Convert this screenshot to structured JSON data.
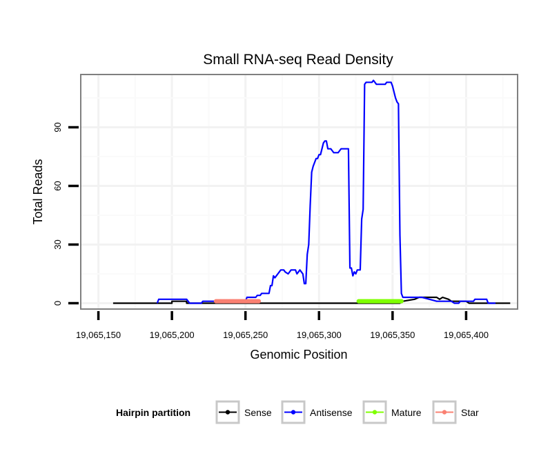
{
  "chart_data": {
    "type": "line",
    "title": "Small RNA-seq Read Density",
    "xlabel": "Genomic Position",
    "ylabel": "Total Reads",
    "xlim": [
      19065138,
      19065435
    ],
    "ylim": [
      -3,
      117
    ],
    "x_ticks": [
      19065150,
      19065200,
      19065250,
      19065300,
      19065350,
      19065400
    ],
    "x_tick_labels": [
      "19,065,150",
      "19,065,200",
      "19,065,250",
      "19,065,300",
      "19,065,350",
      "19,065,400"
    ],
    "y_ticks": [
      0,
      30,
      60,
      90
    ],
    "y_tick_labels": [
      "0",
      "30",
      "60",
      "90"
    ],
    "grid": true,
    "legend": {
      "title": "Hairpin partition",
      "position": "bottom",
      "entries": [
        {
          "name": "Sense",
          "color": "#000000"
        },
        {
          "name": "Antisense",
          "color": "#0000ff"
        },
        {
          "name": "Mature",
          "color": "#7fff00"
        },
        {
          "name": "Star",
          "color": "#fa8072"
        }
      ]
    },
    "series": [
      {
        "name": "Sense",
        "color": "#000000",
        "style": "line",
        "points": [
          [
            19065160,
            0
          ],
          [
            19065200,
            0
          ],
          [
            19065200,
            1
          ],
          [
            19065210,
            1
          ],
          [
            19065210,
            0
          ],
          [
            19065329,
            0
          ],
          [
            19065355,
            0
          ],
          [
            19065357,
            1
          ],
          [
            19065365,
            2
          ],
          [
            19065368,
            3
          ],
          [
            19065380,
            3
          ],
          [
            19065382,
            2
          ],
          [
            19065384,
            3
          ],
          [
            19065388,
            2
          ],
          [
            19065390,
            1
          ],
          [
            19065400,
            1
          ],
          [
            19065402,
            0
          ],
          [
            19065430,
            0
          ]
        ]
      },
      {
        "name": "Antisense",
        "color": "#0000ff",
        "style": "line",
        "points": [
          [
            19065190,
            0
          ],
          [
            19065191,
            2
          ],
          [
            19065210,
            2
          ],
          [
            19065212,
            0
          ],
          [
            19065220,
            0
          ],
          [
            19065221,
            1
          ],
          [
            19065250,
            1
          ],
          [
            19065251,
            3
          ],
          [
            19065257,
            3
          ],
          [
            19065258,
            4
          ],
          [
            19065260,
            4
          ],
          [
            19065261,
            5
          ],
          [
            19065266,
            5
          ],
          [
            19065267,
            9
          ],
          [
            19065268,
            9
          ],
          [
            19065269,
            14
          ],
          [
            19065270,
            13
          ],
          [
            19065271,
            14
          ],
          [
            19065272,
            15
          ],
          [
            19065273,
            16
          ],
          [
            19065274,
            17
          ],
          [
            19065276,
            17
          ],
          [
            19065277,
            16
          ],
          [
            19065279,
            15
          ],
          [
            19065281,
            17
          ],
          [
            19065284,
            17
          ],
          [
            19065285,
            15
          ],
          [
            19065286,
            16
          ],
          [
            19065287,
            17
          ],
          [
            19065288,
            16
          ],
          [
            19065289,
            15
          ],
          [
            19065290,
            10
          ],
          [
            19065291,
            10
          ],
          [
            19065292,
            25
          ],
          [
            19065293,
            30
          ],
          [
            19065294,
            50
          ],
          [
            19065295,
            67
          ],
          [
            19065296,
            70
          ],
          [
            19065297,
            72
          ],
          [
            19065298,
            74
          ],
          [
            19065299,
            74
          ],
          [
            19065300,
            76
          ],
          [
            19065301,
            76
          ],
          [
            19065302,
            79
          ],
          [
            19065303,
            82
          ],
          [
            19065304,
            83
          ],
          [
            19065305,
            83
          ],
          [
            19065306,
            79
          ],
          [
            19065308,
            79
          ],
          [
            19065309,
            78
          ],
          [
            19065310,
            77
          ],
          [
            19065313,
            77
          ],
          [
            19065314,
            78
          ],
          [
            19065315,
            79
          ],
          [
            19065319,
            79
          ],
          [
            19065320,
            79
          ],
          [
            19065321,
            18
          ],
          [
            19065322,
            18
          ],
          [
            19065323,
            14
          ],
          [
            19065324,
            16
          ],
          [
            19065325,
            15
          ],
          [
            19065326,
            17
          ],
          [
            19065328,
            17
          ],
          [
            19065329,
            43
          ],
          [
            19065330,
            48
          ],
          [
            19065331,
            112
          ],
          [
            19065332,
            113
          ],
          [
            19065336,
            113
          ],
          [
            19065337,
            114
          ],
          [
            19065338,
            113
          ],
          [
            19065339,
            112
          ],
          [
            19065345,
            112
          ],
          [
            19065346,
            113
          ],
          [
            19065349,
            113
          ],
          [
            19065350,
            111
          ],
          [
            19065351,
            108
          ],
          [
            19065352,
            105
          ],
          [
            19065353,
            103
          ],
          [
            19065354,
            102
          ],
          [
            19065355,
            35
          ],
          [
            19065356,
            5
          ],
          [
            19065357,
            3
          ],
          [
            19065370,
            3
          ],
          [
            19065375,
            2
          ],
          [
            19065380,
            1
          ],
          [
            19065390,
            1
          ],
          [
            19065392,
            0
          ],
          [
            19065395,
            0
          ],
          [
            19065396,
            1
          ],
          [
            19065405,
            1
          ],
          [
            19065406,
            2
          ],
          [
            19065414,
            2
          ],
          [
            19065415,
            0
          ],
          [
            19065420,
            0
          ]
        ]
      },
      {
        "name": "Mature",
        "color": "#7fff00",
        "style": "points",
        "x_range": [
          19065327,
          19065356
        ],
        "y": 1
      },
      {
        "name": "Star",
        "color": "#fa8072",
        "style": "points",
        "x_range": [
          19065230,
          19065259
        ],
        "y": 1
      }
    ]
  }
}
